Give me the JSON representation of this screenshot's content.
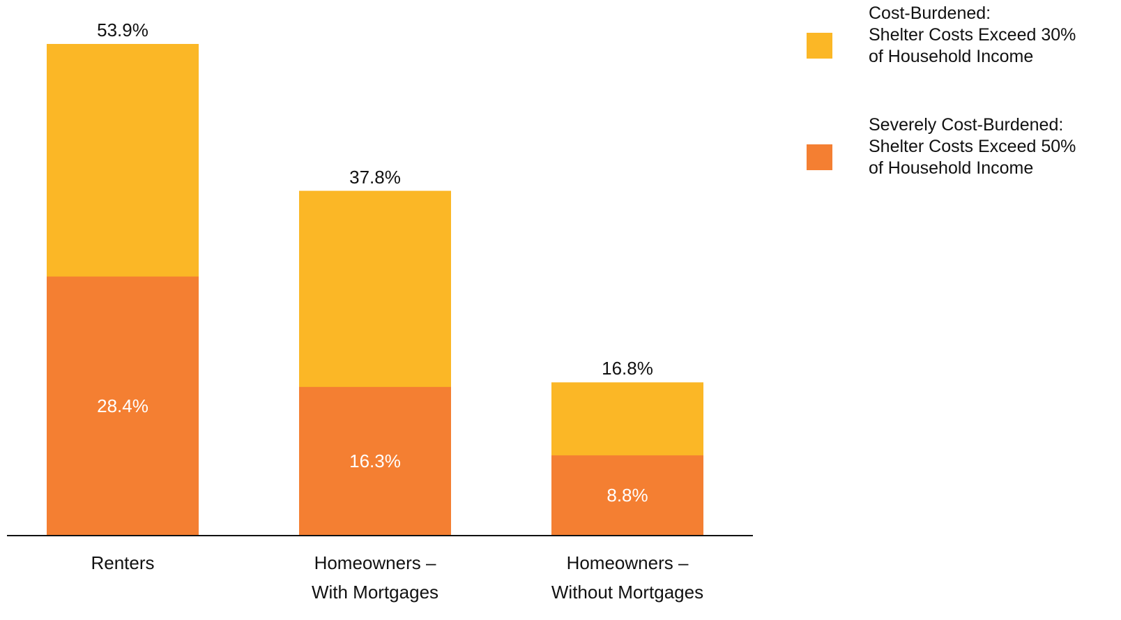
{
  "chart_data": {
    "type": "bar",
    "mode": "overlap",
    "categories": [
      "Renters",
      "Homeowners –\nWith Mortgages",
      "Homeowners –\nWithout Mortgages"
    ],
    "series": [
      {
        "name": "Cost-Burdened:\nShelter Costs Exceed 30%\nof Household Income",
        "color": "#fbb726",
        "values": [
          53.9,
          37.8,
          16.8
        ],
        "value_labels": [
          "53.9%",
          "37.8%",
          "16.8%"
        ]
      },
      {
        "name": "Severely Cost-Burdened:\nShelter Costs Exceed 50%\nof Household Income",
        "color": "#f47f32",
        "values": [
          28.4,
          16.3,
          8.8
        ],
        "value_labels": [
          "28.4%",
          "16.3%",
          "8.8%"
        ]
      }
    ]
  }
}
